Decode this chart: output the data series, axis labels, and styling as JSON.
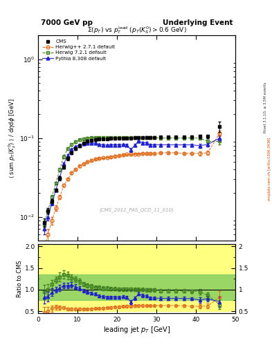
{
  "title_left": "7000 GeV pp",
  "title_right": "Underlying Event",
  "plot_title": "$\\Sigma(p_T)$ vs $p_T^{\\mathrm{lead}}$ $(p_T(K_S^0) > 0.6$ GeV$)$",
  "xlabel": "leading jet $p_T$ [GeV]",
  "ylabel": "$\\langle$ sum $p_T(K_s^0)$ $\\rangle$ / d$\\eta$d$\\phi$ [GeV]",
  "ylabel_ratio": "Ratio to CMS",
  "watermark": "(CMS_2012_PAS_QCD_11_010)",
  "rivet_label": "Rivet 3.1.10, ≥ 3.5M events",
  "arxiv_label": "mcplots.cern.ch [arXiv:1306.3436]",
  "cms_x": [
    1.5,
    2.5,
    3.5,
    4.5,
    5.5,
    6.5,
    7.5,
    8.5,
    9.5,
    10.5,
    11.5,
    12.5,
    13.5,
    14.5,
    15.5,
    16.5,
    17.5,
    18.5,
    19.5,
    20.5,
    21.5,
    22.5,
    23.5,
    24.5,
    25.5,
    26.5,
    27.5,
    28.5,
    29.5,
    31.0,
    33.0,
    35.0,
    37.0,
    39.0,
    41.0,
    43.0,
    46.0
  ],
  "cms_y": [
    0.0085,
    0.012,
    0.016,
    0.022,
    0.031,
    0.043,
    0.055,
    0.065,
    0.073,
    0.08,
    0.087,
    0.091,
    0.094,
    0.096,
    0.097,
    0.098,
    0.098,
    0.099,
    0.099,
    0.1,
    0.1,
    0.1,
    0.1,
    0.101,
    0.101,
    0.101,
    0.102,
    0.102,
    0.102,
    0.103,
    0.103,
    0.103,
    0.103,
    0.104,
    0.105,
    0.105,
    0.14
  ],
  "cms_yerr": [
    0.001,
    0.001,
    0.001,
    0.001,
    0.002,
    0.002,
    0.003,
    0.003,
    0.003,
    0.003,
    0.003,
    0.003,
    0.003,
    0.003,
    0.003,
    0.003,
    0.003,
    0.003,
    0.003,
    0.003,
    0.003,
    0.003,
    0.003,
    0.003,
    0.003,
    0.003,
    0.003,
    0.003,
    0.003,
    0.003,
    0.003,
    0.003,
    0.003,
    0.003,
    0.006,
    0.006,
    0.02
  ],
  "hppx": [
    1.5,
    2.5,
    3.5,
    4.5,
    5.5,
    6.5,
    7.5,
    8.5,
    9.5,
    10.5,
    11.5,
    12.5,
    13.5,
    14.5,
    15.5,
    16.5,
    17.5,
    18.5,
    19.5,
    20.5,
    21.5,
    22.5,
    23.5,
    24.5,
    25.5,
    26.5,
    27.5,
    28.5,
    29.5,
    31.0,
    33.0,
    35.0,
    37.0,
    39.0,
    41.0,
    43.0,
    46.0
  ],
  "hppy": [
    0.004,
    0.006,
    0.009,
    0.013,
    0.018,
    0.025,
    0.03,
    0.036,
    0.04,
    0.044,
    0.047,
    0.05,
    0.052,
    0.054,
    0.055,
    0.056,
    0.057,
    0.058,
    0.059,
    0.06,
    0.061,
    0.062,
    0.062,
    0.063,
    0.063,
    0.064,
    0.064,
    0.064,
    0.064,
    0.065,
    0.065,
    0.065,
    0.064,
    0.064,
    0.064,
    0.065,
    0.115
  ],
  "hpp_yerr": [
    0.001,
    0.001,
    0.001,
    0.001,
    0.001,
    0.001,
    0.001,
    0.001,
    0.001,
    0.001,
    0.001,
    0.001,
    0.001,
    0.001,
    0.001,
    0.001,
    0.001,
    0.001,
    0.001,
    0.001,
    0.001,
    0.001,
    0.001,
    0.001,
    0.001,
    0.001,
    0.001,
    0.001,
    0.001,
    0.001,
    0.001,
    0.001,
    0.001,
    0.001,
    0.004,
    0.004,
    0.01
  ],
  "hw7x": [
    1.5,
    2.5,
    3.5,
    4.5,
    5.5,
    6.5,
    7.5,
    8.5,
    9.5,
    10.5,
    11.5,
    12.5,
    13.5,
    14.5,
    15.5,
    16.5,
    17.5,
    18.5,
    19.5,
    20.5,
    21.5,
    22.5,
    23.5,
    24.5,
    25.5,
    26.5,
    27.5,
    28.5,
    29.5,
    31.0,
    33.0,
    35.0,
    37.0,
    39.0,
    41.0,
    43.0,
    46.0
  ],
  "hw7y": [
    0.008,
    0.012,
    0.018,
    0.027,
    0.04,
    0.058,
    0.073,
    0.083,
    0.09,
    0.095,
    0.098,
    0.1,
    0.101,
    0.101,
    0.101,
    0.101,
    0.101,
    0.101,
    0.101,
    0.101,
    0.101,
    0.101,
    0.101,
    0.101,
    0.101,
    0.101,
    0.101,
    0.101,
    0.101,
    0.1,
    0.1,
    0.1,
    0.1,
    0.1,
    0.1,
    0.091,
    0.091
  ],
  "hw7_yerr": [
    0.001,
    0.001,
    0.001,
    0.001,
    0.002,
    0.003,
    0.003,
    0.003,
    0.003,
    0.003,
    0.003,
    0.003,
    0.003,
    0.003,
    0.003,
    0.003,
    0.003,
    0.003,
    0.003,
    0.003,
    0.003,
    0.003,
    0.003,
    0.003,
    0.003,
    0.003,
    0.003,
    0.003,
    0.003,
    0.003,
    0.003,
    0.003,
    0.003,
    0.003,
    0.003,
    0.005,
    0.008
  ],
  "pythiax": [
    1.5,
    2.5,
    3.5,
    4.5,
    5.5,
    6.5,
    7.5,
    8.5,
    9.5,
    10.5,
    11.5,
    12.5,
    13.5,
    14.5,
    15.5,
    16.5,
    17.5,
    18.5,
    19.5,
    20.5,
    21.5,
    22.5,
    23.5,
    24.5,
    25.5,
    26.5,
    27.5,
    28.5,
    29.5,
    31.0,
    33.0,
    35.0,
    37.0,
    39.0,
    41.0,
    43.0,
    46.0
  ],
  "pythiay": [
    0.007,
    0.01,
    0.015,
    0.022,
    0.032,
    0.047,
    0.06,
    0.072,
    0.078,
    0.082,
    0.085,
    0.086,
    0.086,
    0.086,
    0.083,
    0.082,
    0.081,
    0.082,
    0.082,
    0.082,
    0.083,
    0.082,
    0.071,
    0.081,
    0.091,
    0.087,
    0.087,
    0.082,
    0.082,
    0.082,
    0.082,
    0.082,
    0.082,
    0.082,
    0.08,
    0.083,
    0.1
  ],
  "pythia_yerr": [
    0.001,
    0.001,
    0.001,
    0.001,
    0.001,
    0.002,
    0.002,
    0.002,
    0.002,
    0.002,
    0.002,
    0.002,
    0.002,
    0.002,
    0.002,
    0.002,
    0.002,
    0.002,
    0.002,
    0.002,
    0.002,
    0.002,
    0.004,
    0.003,
    0.003,
    0.003,
    0.003,
    0.003,
    0.003,
    0.003,
    0.003,
    0.003,
    0.003,
    0.003,
    0.005,
    0.005,
    0.008
  ],
  "cms_color": "#000000",
  "hpp_color": "#e07020",
  "hw7_color": "#408020",
  "pythia_color": "#2020cc",
  "ylim_main_low": 0.005,
  "ylim_main_high": 2.0,
  "ylim_ratio_low": 0.45,
  "ylim_ratio_high": 2.05,
  "xlim_low": 0,
  "xlim_high": 50
}
